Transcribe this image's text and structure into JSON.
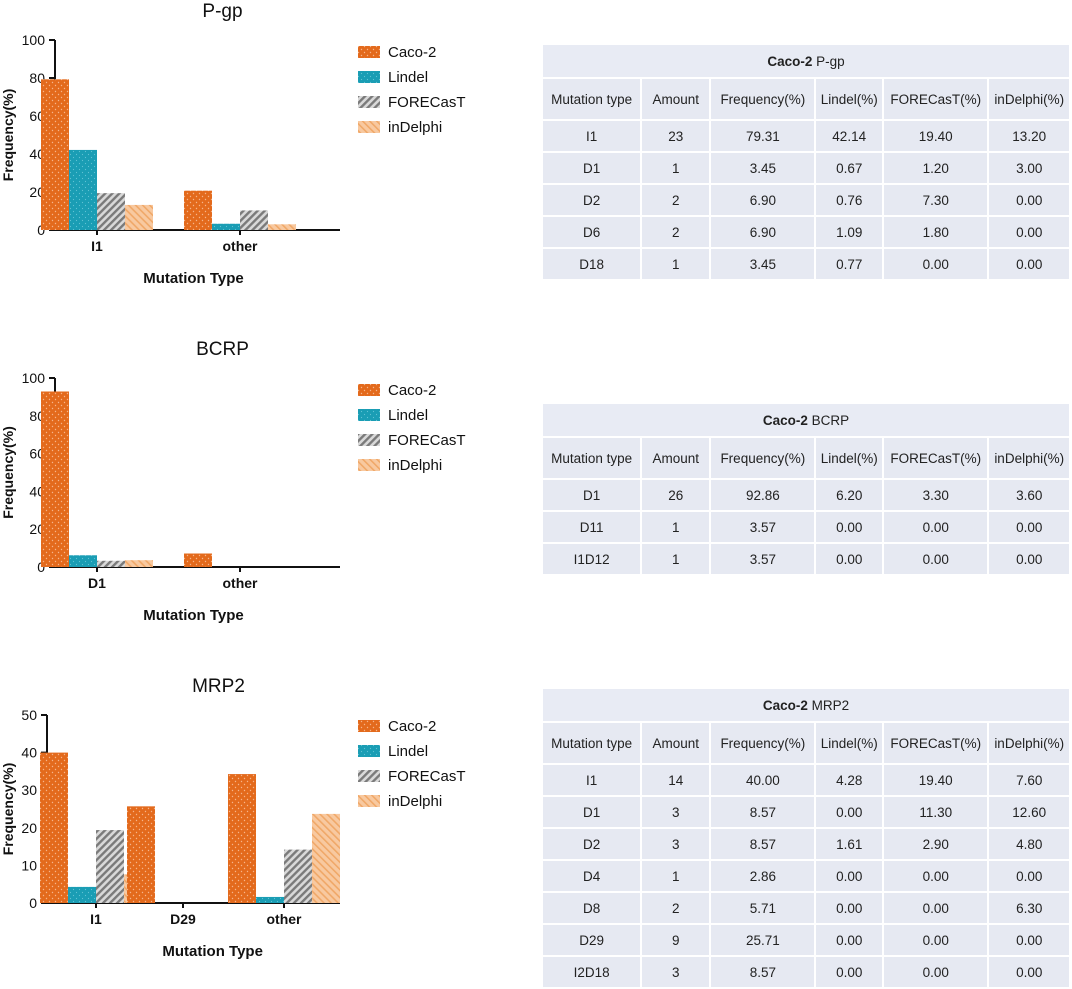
{
  "colors": {
    "caco2": "#e36a1c",
    "lindel": "#1a9db4",
    "forecast": "#8a8a8a",
    "indelphi": "#f3b07a"
  },
  "chart_data": [
    {
      "type": "bar",
      "title": "P-gp",
      "xlabel": "Mutation Type",
      "ylabel": "Frequency(%)",
      "ylim": [
        0,
        100
      ],
      "yticks": [
        "0",
        "20",
        "40",
        "60",
        "80",
        "100"
      ],
      "categories": [
        "I1",
        "other"
      ],
      "series": [
        {
          "name": "Caco-2",
          "values": [
            79.31,
            20.69
          ]
        },
        {
          "name": "Lindel",
          "values": [
            42.14,
            3.29
          ]
        },
        {
          "name": "FORECasT",
          "values": [
            19.4,
            10.3
          ]
        },
        {
          "name": "inDelphi",
          "values": [
            13.2,
            3.0
          ]
        }
      ],
      "legend": "right"
    },
    {
      "type": "bar",
      "title": "BCRP",
      "xlabel": "Mutation Type",
      "ylabel": "Frequency(%)",
      "ylim": [
        0,
        100
      ],
      "yticks": [
        "0",
        "20",
        "40",
        "60",
        "80",
        "100"
      ],
      "categories": [
        "D1",
        "other"
      ],
      "series": [
        {
          "name": "Caco-2",
          "values": [
            92.86,
            7.14
          ]
        },
        {
          "name": "Lindel",
          "values": [
            6.2,
            0.0
          ]
        },
        {
          "name": "FORECasT",
          "values": [
            3.3,
            0.0
          ]
        },
        {
          "name": "inDelphi",
          "values": [
            3.6,
            0.0
          ]
        }
      ],
      "legend": "right"
    },
    {
      "type": "bar",
      "title": "MRP2",
      "xlabel": "Mutation Type",
      "ylabel": "Frequency(%)",
      "ylim": [
        0,
        50
      ],
      "yticks": [
        "0",
        "10",
        "20",
        "30",
        "40",
        "50"
      ],
      "categories": [
        "I1",
        "D29",
        "other"
      ],
      "series": [
        {
          "name": "Caco-2",
          "values": [
            40.0,
            25.71,
            34.29
          ]
        },
        {
          "name": "Lindel",
          "values": [
            4.28,
            0.0,
            1.61
          ]
        },
        {
          "name": "FORECasT",
          "values": [
            19.4,
            0.0,
            14.2
          ]
        },
        {
          "name": "inDelphi",
          "values": [
            7.6,
            0.0,
            23.7
          ]
        }
      ],
      "legend": "right"
    }
  ],
  "tables": [
    {
      "title_bold": "Caco-2",
      "title_rest": " P-gp",
      "headers": [
        "Mutation type",
        "Amount",
        "Frequency(%)",
        "Lindel(%)",
        "FORECasT(%)",
        "inDelphi(%)"
      ],
      "rows": [
        [
          "I1",
          "23",
          "79.31",
          "42.14",
          "19.40",
          "13.20"
        ],
        [
          "D1",
          "1",
          "3.45",
          "0.67",
          "1.20",
          "3.00"
        ],
        [
          "D2",
          "2",
          "6.90",
          "0.76",
          "7.30",
          "0.00"
        ],
        [
          "D6",
          "2",
          "6.90",
          "1.09",
          "1.80",
          "0.00"
        ],
        [
          "D18",
          "1",
          "3.45",
          "0.77",
          "0.00",
          "0.00"
        ]
      ]
    },
    {
      "title_bold": "Caco-2",
      "title_rest": " BCRP",
      "headers": [
        "Mutation type",
        "Amount",
        "Frequency(%)",
        "Lindel(%)",
        "FORECasT(%)",
        "inDelphi(%)"
      ],
      "rows": [
        [
          "D1",
          "26",
          "92.86",
          "6.20",
          "3.30",
          "3.60"
        ],
        [
          "D11",
          "1",
          "3.57",
          "0.00",
          "0.00",
          "0.00"
        ],
        [
          "I1D12",
          "1",
          "3.57",
          "0.00",
          "0.00",
          "0.00"
        ]
      ]
    },
    {
      "title_bold": "Caco-2",
      "title_rest": " MRP2",
      "headers": [
        "Mutation type",
        "Amount",
        "Frequency(%)",
        "Lindel(%)",
        "FORECasT(%)",
        "inDelphi(%)"
      ],
      "rows": [
        [
          "I1",
          "14",
          "40.00",
          "4.28",
          "19.40",
          "7.60"
        ],
        [
          "D1",
          "3",
          "8.57",
          "0.00",
          "11.30",
          "12.60"
        ],
        [
          "D2",
          "3",
          "8.57",
          "1.61",
          "2.90",
          "4.80"
        ],
        [
          "D4",
          "1",
          "2.86",
          "0.00",
          "0.00",
          "0.00"
        ],
        [
          "D8",
          "2",
          "5.71",
          "0.00",
          "0.00",
          "6.30"
        ],
        [
          "D29",
          "9",
          "25.71",
          "0.00",
          "0.00",
          "0.00"
        ],
        [
          "I2D18",
          "3",
          "8.57",
          "0.00",
          "0.00",
          "0.00"
        ]
      ]
    }
  ]
}
